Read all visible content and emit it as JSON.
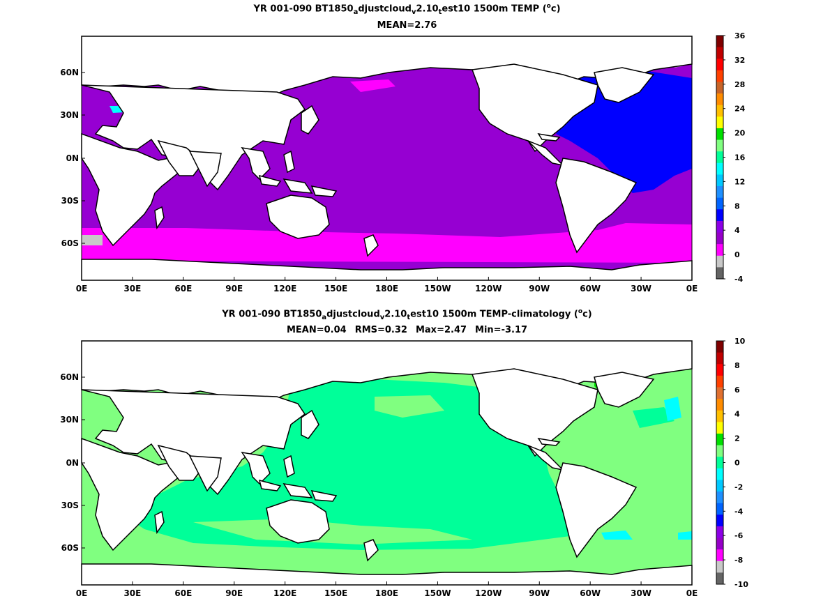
{
  "panel1": {
    "title_prefix": "YR 001-090 BT1850",
    "title_sub1": "a",
    "title_mid1": "djustcloud",
    "title_sub2": "v",
    "title_mid2": "2.10",
    "title_sub3": "t",
    "title_suffix": "est10 1500m TEMP (",
    "title_unit_sup": "o",
    "title_unit_end": "c)",
    "subtitle": "MEAN=2.76",
    "colorbar_ticks": [
      "36",
      "32",
      "28",
      "24",
      "20",
      "16",
      "12",
      "8",
      "4",
      "0",
      "-4"
    ],
    "colorbar_colors": [
      "#7f0000",
      "#c00000",
      "#ff0000",
      "#ff4000",
      "#c86428",
      "#ff8c00",
      "#ffc000",
      "#ffff00",
      "#00e000",
      "#80ff80",
      "#00ff99",
      "#00ffff",
      "#00c8ff",
      "#1e90ff",
      "#0064ff",
      "#0000ff",
      "#8c00e6",
      "#9600c8",
      "#ff00ff",
      "#c8c8c8",
      "#646464"
    ]
  },
  "panel2": {
    "title_prefix": "YR 001-090 BT1850",
    "title_sub1": "a",
    "title_mid1": "djustcloud",
    "title_sub2": "v",
    "title_mid2": "2.10",
    "title_sub3": "t",
    "title_suffix": "est10 1500m TEMP-climatology (",
    "title_unit_sup": "o",
    "title_unit_end": "c)",
    "stat_mean": "MEAN=0.04",
    "stat_rms": "RMS=0.32",
    "stat_max": "Max=2.47",
    "stat_min": "Min=-3.17",
    "colorbar_ticks": [
      "10",
      "8",
      "6",
      "4",
      "2",
      "0",
      "-2",
      "-4",
      "-6",
      "-8",
      "-10"
    ],
    "colorbar_colors": [
      "#7f0000",
      "#c00000",
      "#ff0000",
      "#ff4000",
      "#e07030",
      "#ff8c00",
      "#ffc000",
      "#ffff00",
      "#00e000",
      "#80ff80",
      "#00ff99",
      "#00ffff",
      "#00c8ff",
      "#1e90ff",
      "#0064ff",
      "#0000ff",
      "#8c00e6",
      "#9600c8",
      "#ff00ff",
      "#c8c8c8",
      "#646464"
    ]
  },
  "map_axes": {
    "lon_labels": [
      "0E",
      "30E",
      "60E",
      "90E",
      "120E",
      "150E",
      "180E",
      "150W",
      "120W",
      "90W",
      "60W",
      "30W",
      "0E"
    ],
    "lat_labels": [
      "60N",
      "30N",
      "0N",
      "30S",
      "60S"
    ]
  },
  "colors": {
    "p1_ocean": "#9600d2",
    "p1_southern": "#ff00ff",
    "p1_atlantic": "#0000ff",
    "p1_ice": "#c8c8c8",
    "p2_ocean": "#00ff99",
    "p2_light": "#80ff80",
    "p2_yellow": "#ffff00",
    "p2_cyan": "#00ffff",
    "land": "#ffffff",
    "coast": "#000000"
  }
}
